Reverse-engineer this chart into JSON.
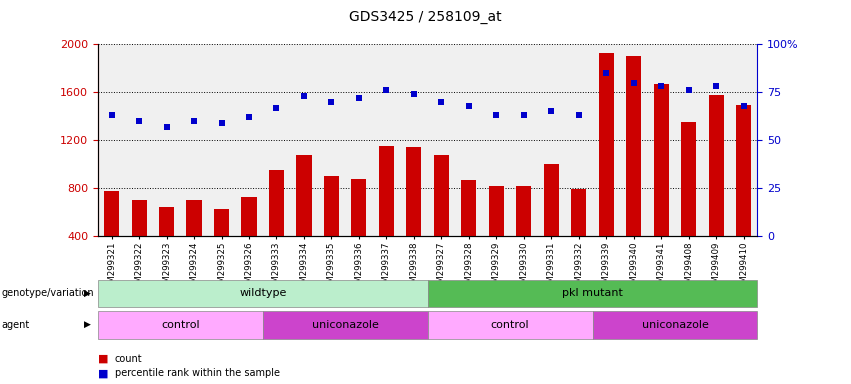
{
  "title": "GDS3425 / 258109_at",
  "samples": [
    "GSM299321",
    "GSM299322",
    "GSM299323",
    "GSM299324",
    "GSM299325",
    "GSM299326",
    "GSM299333",
    "GSM299334",
    "GSM299335",
    "GSM299336",
    "GSM299337",
    "GSM299338",
    "GSM299327",
    "GSM299328",
    "GSM299329",
    "GSM299330",
    "GSM299331",
    "GSM299332",
    "GSM299339",
    "GSM299340",
    "GSM299341",
    "GSM299408",
    "GSM299409",
    "GSM299410"
  ],
  "counts": [
    780,
    700,
    640,
    700,
    630,
    730,
    950,
    1080,
    900,
    880,
    1150,
    1140,
    1080,
    870,
    820,
    820,
    1000,
    790,
    1930,
    1900,
    1670,
    1350,
    1580,
    1490
  ],
  "percentile": [
    63,
    60,
    57,
    60,
    59,
    62,
    67,
    73,
    70,
    72,
    76,
    74,
    70,
    68,
    63,
    63,
    65,
    63,
    85,
    80,
    78,
    76,
    78,
    68
  ],
  "ylim_left": [
    400,
    2000
  ],
  "ylim_right": [
    0,
    100
  ],
  "yticks_left": [
    400,
    800,
    1200,
    1600,
    2000
  ],
  "yticks_right": [
    0,
    25,
    50,
    75,
    100
  ],
  "bar_color": "#cc0000",
  "dot_color": "#0000cc",
  "bg_color": "#f0f0f0",
  "wildtype_light": "#bbeebb",
  "wildtype_dark": "#55bb55",
  "control_color": "#ffaaff",
  "uniconazole_color": "#cc44cc",
  "genotype_groups": [
    {
      "label": "wildtype",
      "start": 0,
      "end": 12,
      "color": "#bbeebb"
    },
    {
      "label": "pkl mutant",
      "start": 12,
      "end": 24,
      "color": "#55bb55"
    }
  ],
  "agent_groups": [
    {
      "label": "control",
      "start": 0,
      "end": 6,
      "color": "#ffaaff"
    },
    {
      "label": "uniconazole",
      "start": 6,
      "end": 12,
      "color": "#cc44cc"
    },
    {
      "label": "control",
      "start": 12,
      "end": 18,
      "color": "#ffaaff"
    },
    {
      "label": "uniconazole",
      "start": 18,
      "end": 24,
      "color": "#cc44cc"
    }
  ]
}
